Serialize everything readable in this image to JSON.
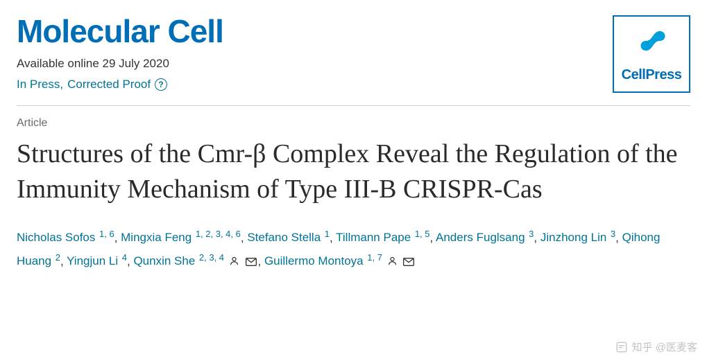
{
  "journal": {
    "name": "Molecular Cell",
    "availability": "Available online 29 July 2020",
    "status_prefix": "In Press, ",
    "status_link": "Corrected Proof",
    "publisher_label": "CellPress"
  },
  "article": {
    "type_label": "Article",
    "title": "Structures of the Cmr-β Complex Reveal the Regulation of the Immunity Mechanism of Type III-B CRISPR-Cas"
  },
  "authors": [
    {
      "name": "Nicholas Sofos",
      "affs": "1, 6",
      "person": false,
      "mail": false
    },
    {
      "name": "Mingxia Feng",
      "affs": "1, 2, 3, 4, 6",
      "person": false,
      "mail": false
    },
    {
      "name": "Stefano Stella",
      "affs": "1",
      "person": false,
      "mail": false
    },
    {
      "name": "Tillmann Pape",
      "affs": "1, 5",
      "person": false,
      "mail": false
    },
    {
      "name": "Anders Fuglsang",
      "affs": "3",
      "person": false,
      "mail": false
    },
    {
      "name": "Jinzhong Lin",
      "affs": "3",
      "person": false,
      "mail": false
    },
    {
      "name": "Qihong Huang",
      "affs": "2",
      "person": false,
      "mail": false
    },
    {
      "name": "Yingjun Li",
      "affs": "4",
      "person": false,
      "mail": false
    },
    {
      "name": "Qunxin She",
      "affs": "2, 3, 4",
      "person": true,
      "mail": true
    },
    {
      "name": "Guillermo Montoya",
      "affs": "1, 7",
      "person": true,
      "mail": true
    }
  ],
  "colors": {
    "brand": "#006db7",
    "link": "#007398",
    "text": "#333333",
    "muted": "#6a6a6a",
    "divider": "#cfcfcf",
    "background": "#ffffff"
  },
  "watermark": "知乎 @医麦客"
}
